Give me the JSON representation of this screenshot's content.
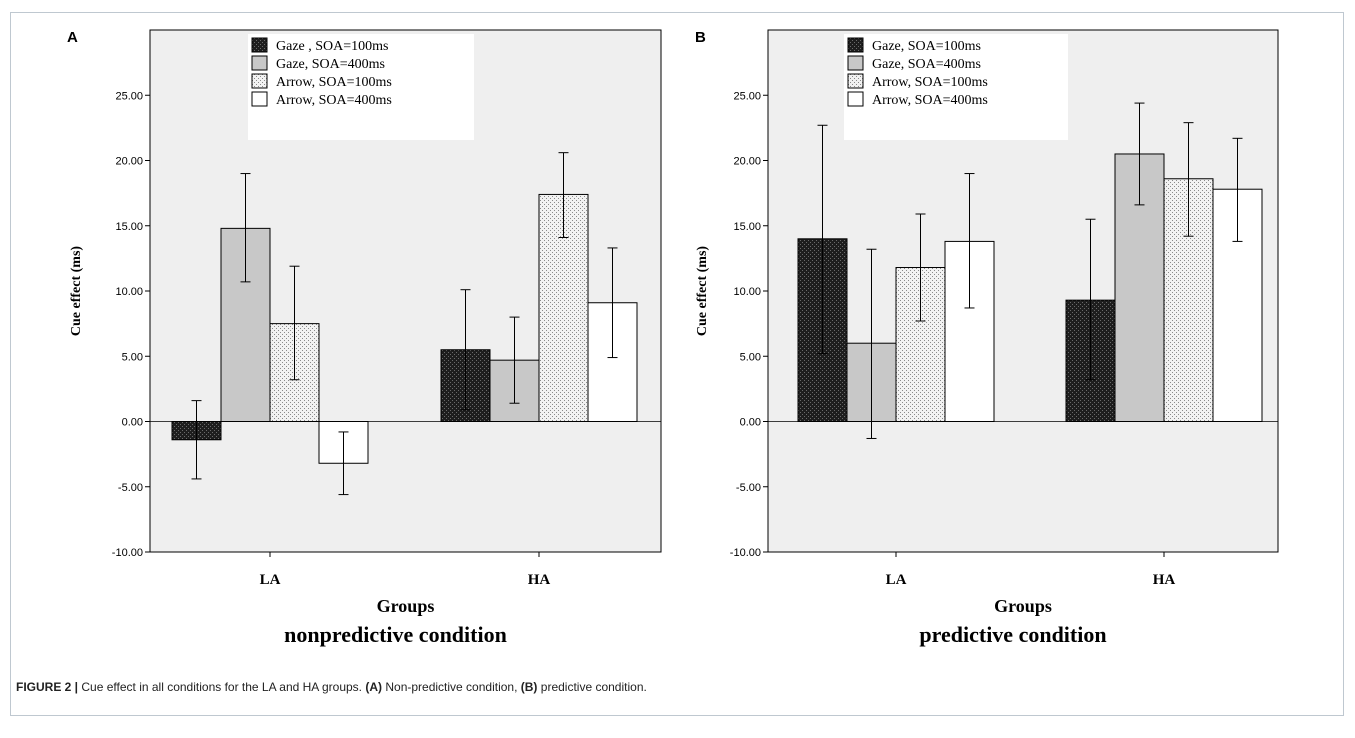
{
  "caption": {
    "figure_label": "FIGURE 2 |",
    "text_1": " Cue effect in all conditions for the LA and HA groups. ",
    "ref_a": "(A)",
    "text_2": " Non-predictive condition, ",
    "ref_b": "(B)",
    "text_3": " predictive condition."
  },
  "colors": {
    "plot_bg": "#efefef",
    "gaze_100": "#2a2a2a",
    "gaze_400": "#c8c8c8",
    "arrow_100": "#e0e0e0",
    "arrow_400": "#ffffff"
  },
  "chart_data": [
    {
      "panel": "A",
      "type": "bar",
      "condition": "nonpredictive condition",
      "xlabel": "Groups",
      "ylabel": "Cue effect (ms)",
      "categories": [
        "LA",
        "HA"
      ],
      "ylim": [
        -10,
        30
      ],
      "yticks": [
        "-10.00",
        "-5.00",
        "0.00",
        "5.00",
        "10.00",
        "15.00",
        "20.00",
        "25.00"
      ],
      "legend_position": "top-left",
      "series": [
        {
          "name": "Gaze , SOA=100ms",
          "pattern": "dark",
          "values": [
            -1.4,
            5.5
          ],
          "err_low": [
            -4.4,
            0.9
          ],
          "err_high": [
            1.6,
            10.1
          ]
        },
        {
          "name": "Gaze, SOA=400ms",
          "pattern": "gray",
          "values": [
            14.8,
            4.7
          ],
          "err_low": [
            10.7,
            1.4
          ],
          "err_high": [
            19.0,
            8.0
          ]
        },
        {
          "name": "Arrow, SOA=100ms",
          "pattern": "dots",
          "values": [
            7.5,
            17.4
          ],
          "err_low": [
            3.2,
            14.1
          ],
          "err_high": [
            11.9,
            20.6
          ]
        },
        {
          "name": "Arrow, SOA=400ms",
          "pattern": "white",
          "values": [
            -3.2,
            9.1
          ],
          "err_low": [
            -5.6,
            4.9
          ],
          "err_high": [
            -0.8,
            13.3
          ]
        }
      ]
    },
    {
      "panel": "B",
      "type": "bar",
      "condition": "predictive condition",
      "xlabel": "Groups",
      "ylabel": "Cue effect (ms)",
      "categories": [
        "LA",
        "HA"
      ],
      "ylim": [
        -10,
        30
      ],
      "yticks": [
        "-10.00",
        "-5.00",
        "0.00",
        "5.00",
        "10.00",
        "15.00",
        "20.00",
        "25.00"
      ],
      "legend_position": "top-left",
      "series": [
        {
          "name": "Gaze, SOA=100ms",
          "pattern": "dark",
          "values": [
            14.0,
            9.3
          ],
          "err_low": [
            5.2,
            3.2
          ],
          "err_high": [
            22.7,
            15.5
          ]
        },
        {
          "name": "Gaze, SOA=400ms",
          "pattern": "gray",
          "values": [
            6.0,
            20.5
          ],
          "err_low": [
            -1.3,
            16.6
          ],
          "err_high": [
            13.2,
            24.4
          ]
        },
        {
          "name": "Arrow, SOA=100ms",
          "pattern": "dots",
          "values": [
            11.8,
            18.6
          ],
          "err_low": [
            7.7,
            14.2
          ],
          "err_high": [
            15.9,
            22.9
          ]
        },
        {
          "name": "Arrow, SOA=400ms",
          "pattern": "white",
          "values": [
            13.8,
            17.8
          ],
          "err_low": [
            8.7,
            13.8
          ],
          "err_high": [
            19.0,
            21.7
          ]
        }
      ]
    }
  ]
}
